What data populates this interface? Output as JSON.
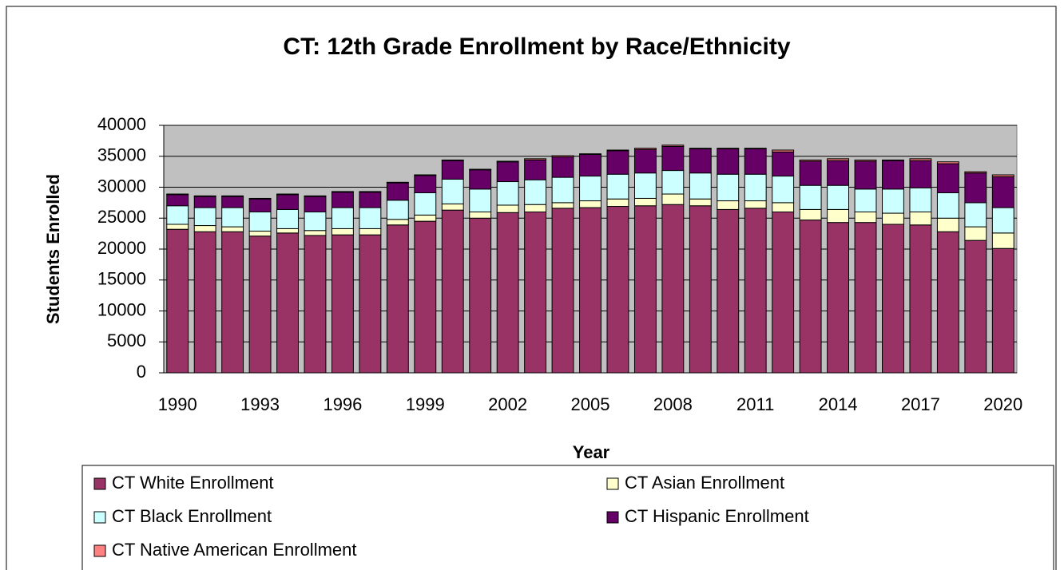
{
  "chart_data": {
    "type": "bar",
    "stacked": true,
    "title": "CT: 12th Grade Enrollment by Race/Ethnicity",
    "xlabel": "Year",
    "ylabel": "Students Enrolled",
    "categories": [
      "1990",
      null,
      null,
      "1993",
      null,
      null,
      "1996",
      null,
      null,
      "1999",
      null,
      null,
      "2002",
      null,
      null,
      "2005",
      null,
      null,
      "2008",
      null,
      null,
      "2011",
      null,
      null,
      "2014",
      null,
      null,
      "2017",
      null,
      null,
      "2020"
    ],
    "series": [
      {
        "name": "CT White Enrollment",
        "color": "#993366",
        "values": [
          23200,
          22800,
          22800,
          22100,
          22600,
          22200,
          22300,
          22300,
          23900,
          24500,
          26300,
          25000,
          25900,
          26000,
          26600,
          26700,
          26900,
          27000,
          27200,
          27000,
          26400,
          26600,
          26000,
          24700,
          24300,
          24300,
          24000,
          23900,
          22800,
          21400,
          20100
        ]
      },
      {
        "name": "CT Asian Enrollment",
        "color": "#ffffcc",
        "values": [
          800,
          1000,
          800,
          800,
          700,
          800,
          1000,
          1000,
          900,
          1000,
          1000,
          1000,
          1200,
          1200,
          900,
          1100,
          1200,
          1200,
          1700,
          1100,
          1400,
          1200,
          1500,
          1700,
          2100,
          1700,
          1800,
          2100,
          2200,
          2200,
          2500
        ]
      },
      {
        "name": "CT Black Enrollment",
        "color": "#ccffff",
        "values": [
          3000,
          2900,
          3100,
          3100,
          3100,
          3000,
          3400,
          3400,
          3100,
          3600,
          4000,
          3700,
          3800,
          4000,
          4100,
          4000,
          4000,
          4100,
          3800,
          4200,
          4300,
          4300,
          4300,
          3900,
          3900,
          3700,
          3900,
          3900,
          4100,
          3900,
          4100
        ]
      },
      {
        "name": "CT Hispanic Enrollment",
        "color": "#660066",
        "values": [
          1800,
          1800,
          1800,
          2100,
          2400,
          2500,
          2500,
          2500,
          2800,
          2800,
          3000,
          3100,
          3200,
          3200,
          3300,
          3500,
          3800,
          3800,
          3900,
          3900,
          4100,
          4100,
          3900,
          3900,
          4000,
          4500,
          4600,
          4400,
          4700,
          4800,
          5000
        ]
      },
      {
        "name": "CT Native American Enrollment",
        "color": "#ff8080",
        "values": [
          100,
          100,
          100,
          100,
          100,
          100,
          100,
          100,
          100,
          100,
          100,
          100,
          100,
          200,
          200,
          100,
          100,
          200,
          200,
          100,
          100,
          100,
          300,
          200,
          300,
          200,
          100,
          300,
          300,
          200,
          300
        ]
      }
    ],
    "ylim": [
      0,
      40000
    ],
    "yticks": [
      0,
      5000,
      10000,
      15000,
      20000,
      25000,
      30000,
      35000,
      40000
    ],
    "grid": true,
    "plot_background": "#c0c0c0",
    "legend": "bottom"
  }
}
